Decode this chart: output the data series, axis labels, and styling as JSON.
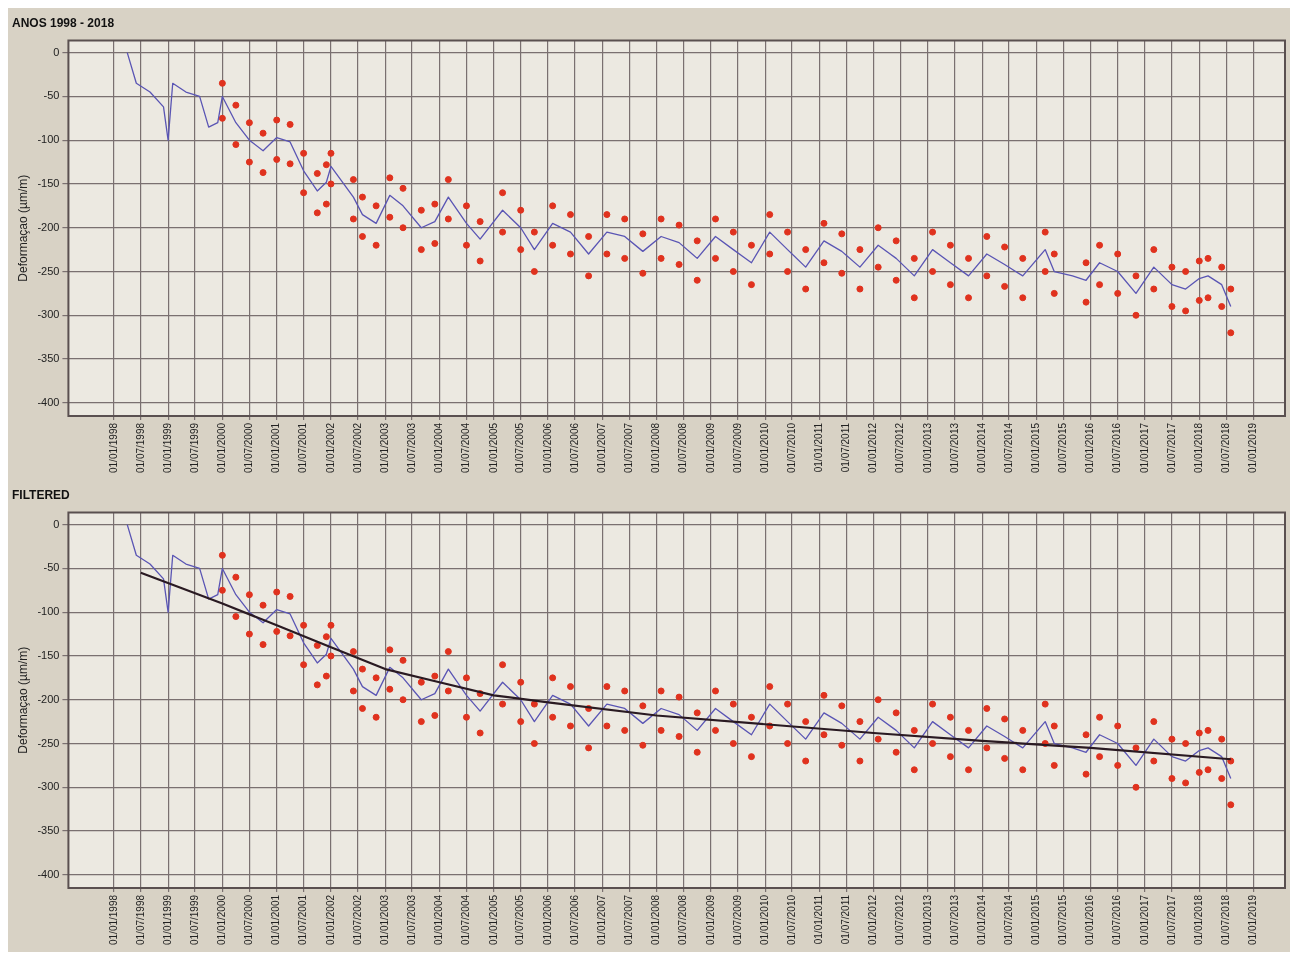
{
  "chart_data": [
    {
      "type": "line",
      "title": "ANOS 1998 - 2018",
      "ylabel": "Deformaçao (µm/m)",
      "xlim": [
        "1997-03-01",
        "2019-08-01"
      ],
      "ylim": [
        -415,
        14
      ],
      "grid": true,
      "yticks": [
        0,
        -50,
        -100,
        -150,
        -200,
        -250,
        -300,
        -350,
        -400
      ],
      "xticks": [
        {
          "value": "1998-01-01",
          "label": "01/01/1998"
        },
        {
          "value": "1998-07-01",
          "label": "01/07/1998"
        },
        {
          "value": "1999-01-01",
          "label": "01/01/1999"
        },
        {
          "value": "1999-07-01",
          "label": "01/07/1999"
        },
        {
          "value": "2000-01-01",
          "label": "01/01/2000"
        },
        {
          "value": "2000-07-01",
          "label": "01/07/2000"
        },
        {
          "value": "2001-01-01",
          "label": "01/01/2001"
        },
        {
          "value": "2001-07-01",
          "label": "01/07/2001"
        },
        {
          "value": "2002-01-01",
          "label": "01/01/2002"
        },
        {
          "value": "2002-07-01",
          "label": "01/07/2002"
        },
        {
          "value": "2003-01-01",
          "label": "01/01/2003"
        },
        {
          "value": "2003-07-01",
          "label": "01/07/2003"
        },
        {
          "value": "2004-01-01",
          "label": "01/01/2004"
        },
        {
          "value": "2004-07-01",
          "label": "01/07/2004"
        },
        {
          "value": "2005-01-01",
          "label": "01/01/2005"
        },
        {
          "value": "2005-07-01",
          "label": "01/07/2005"
        },
        {
          "value": "2006-01-01",
          "label": "01/01/2006"
        },
        {
          "value": "2006-07-01",
          "label": "01/07/2006"
        },
        {
          "value": "2007-01-01",
          "label": "01/01/2007"
        },
        {
          "value": "2007-07-01",
          "label": "01/07/2007"
        },
        {
          "value": "2008-01-01",
          "label": "01/01/2008"
        },
        {
          "value": "2008-07-01",
          "label": "01/07/2008"
        },
        {
          "value": "2009-01-01",
          "label": "01/01/2009"
        },
        {
          "value": "2009-07-01",
          "label": "01/07/2009"
        },
        {
          "value": "2010-01-01",
          "label": "01/01/2010"
        },
        {
          "value": "2010-07-01",
          "label": "01/07/2010"
        },
        {
          "value": "2011-01-01",
          "label": "01/01/2011"
        },
        {
          "value": "2011-07-01",
          "label": "01/07/2011"
        },
        {
          "value": "2012-01-01",
          "label": "01/01/2012"
        },
        {
          "value": "2012-07-01",
          "label": "01/07/2012"
        },
        {
          "value": "2013-01-01",
          "label": "01/01/2013"
        },
        {
          "value": "2013-07-01",
          "label": "01/07/2013"
        },
        {
          "value": "2014-01-01",
          "label": "01/01/2014"
        },
        {
          "value": "2014-07-01",
          "label": "01/07/2014"
        },
        {
          "value": "2015-01-01",
          "label": "01/01/2015"
        },
        {
          "value": "2015-07-01",
          "label": "01/07/2015"
        },
        {
          "value": "2016-01-01",
          "label": "01/01/2016"
        },
        {
          "value": "2016-07-01",
          "label": "01/07/2016"
        },
        {
          "value": "2017-01-01",
          "label": "01/01/2017"
        },
        {
          "value": "2017-07-01",
          "label": "01/07/2017"
        },
        {
          "value": "2018-01-01",
          "label": "01/01/2018"
        },
        {
          "value": "2018-07-01",
          "label": "01/07/2018"
        },
        {
          "value": "2019-01-01",
          "label": "01/01/2019"
        }
      ],
      "series": [
        {
          "type": "scatter",
          "marker": "circle",
          "color": "#e0321e",
          "x": [
            "2000-01",
            "2000-01",
            "2000-04",
            "2000-04",
            "2000-07",
            "2000-07",
            "2000-10",
            "2000-10",
            "2001-01",
            "2001-01",
            "2001-04",
            "2001-04",
            "2001-07",
            "2001-07",
            "2001-10",
            "2001-10",
            "2001-12",
            "2001-12",
            "2002-01",
            "2002-01",
            "2002-06",
            "2002-06",
            "2002-08",
            "2002-08",
            "2002-11",
            "2002-11",
            "2003-02",
            "2003-02",
            "2003-05",
            "2003-05",
            "2003-09",
            "2003-09",
            "2003-12",
            "2003-12",
            "2004-03",
            "2004-03",
            "2004-07",
            "2004-07",
            "2004-10",
            "2004-10",
            "2005-03",
            "2005-03",
            "2005-07",
            "2005-07",
            "2005-10",
            "2005-10",
            "2006-02",
            "2006-02",
            "2006-06",
            "2006-06",
            "2006-10",
            "2006-10",
            "2007-02",
            "2007-02",
            "2007-06",
            "2007-06",
            "2007-10",
            "2007-10",
            "2008-02",
            "2008-02",
            "2008-06",
            "2008-06",
            "2008-10",
            "2008-10",
            "2009-02",
            "2009-02",
            "2009-06",
            "2009-06",
            "2009-10",
            "2009-10",
            "2010-02",
            "2010-02",
            "2010-06",
            "2010-06",
            "2010-10",
            "2010-10",
            "2011-02",
            "2011-02",
            "2011-06",
            "2011-06",
            "2011-10",
            "2011-10",
            "2012-02",
            "2012-02",
            "2012-06",
            "2012-06",
            "2012-10",
            "2012-10",
            "2013-02",
            "2013-02",
            "2013-06",
            "2013-06",
            "2013-10",
            "2013-10",
            "2014-02",
            "2014-02",
            "2014-06",
            "2014-06",
            "2014-10",
            "2014-10",
            "2015-03",
            "2015-03",
            "2015-05",
            "2015-05",
            "2015-12",
            "2015-12",
            "2016-03",
            "2016-03",
            "2016-07",
            "2016-07",
            "2016-11",
            "2016-11",
            "2017-03",
            "2017-03",
            "2017-07",
            "2017-07",
            "2017-10",
            "2017-10",
            "2018-01",
            "2018-01",
            "2018-03",
            "2018-03",
            "2018-06",
            "2018-06",
            "2018-08",
            "2018-08"
          ],
          "values": [
            -35,
            -75,
            -60,
            -105,
            -80,
            -125,
            -92,
            -137,
            -77,
            -122,
            -82,
            -127,
            -115,
            -160,
            -138,
            -183,
            -128,
            -173,
            -115,
            -150,
            -145,
            -190,
            -165,
            -210,
            -175,
            -220,
            -143,
            -188,
            -155,
            -200,
            -180,
            -225,
            -173,
            -218,
            -145,
            -190,
            -175,
            -220,
            -193,
            -238,
            -160,
            -205,
            -180,
            -225,
            -205,
            -250,
            -175,
            -220,
            -185,
            -230,
            -210,
            -255,
            -185,
            -230,
            -190,
            -235,
            -207,
            -252,
            -190,
            -235,
            -197,
            -242,
            -215,
            -260,
            -190,
            -235,
            -205,
            -250,
            -220,
            -265,
            -185,
            -230,
            -205,
            -250,
            -225,
            -270,
            -195,
            -240,
            -207,
            -252,
            -225,
            -270,
            -200,
            -245,
            -215,
            -260,
            -235,
            -280,
            -205,
            -250,
            -220,
            -265,
            -235,
            -280,
            -210,
            -255,
            -222,
            -267,
            -235,
            -280,
            -205,
            -250,
            -230,
            -275,
            -240,
            -285,
            -220,
            -265,
            -230,
            -275,
            -255,
            -300,
            -225,
            -270,
            -245,
            -290,
            -250,
            -295,
            -238,
            -283,
            -235,
            -280,
            -245,
            -290,
            -270,
            -320
          ]
        },
        {
          "type": "line",
          "marker": "none",
          "color": "#5a55b4",
          "x": [
            "1998-04",
            "1998-06",
            "1998-09",
            "1998-12",
            "1999-01",
            "1999-02",
            "1999-05",
            "1999-08",
            "1999-10",
            "1999-12",
            "2000-01",
            "2000-04",
            "2000-07",
            "2000-10",
            "2001-01",
            "2001-04",
            "2001-07",
            "2001-10",
            "2001-12",
            "2002-01",
            "2002-06",
            "2002-08",
            "2002-11",
            "2003-02",
            "2003-05",
            "2003-09",
            "2003-12",
            "2004-03",
            "2004-07",
            "2004-10",
            "2005-03",
            "2005-07",
            "2005-10",
            "2006-02",
            "2006-06",
            "2006-10",
            "2007-02",
            "2007-06",
            "2007-10",
            "2008-02",
            "2008-06",
            "2008-10",
            "2009-02",
            "2009-06",
            "2009-10",
            "2010-02",
            "2010-06",
            "2010-10",
            "2011-02",
            "2011-06",
            "2011-10",
            "2012-02",
            "2012-06",
            "2012-10",
            "2013-02",
            "2013-06",
            "2013-10",
            "2014-02",
            "2014-06",
            "2014-10",
            "2015-03",
            "2015-05",
            "2015-09",
            "2015-12",
            "2016-03",
            "2016-07",
            "2016-11",
            "2017-03",
            "2017-07",
            "2017-10",
            "2018-01",
            "2018-03",
            "2018-06",
            "2018-08"
          ],
          "values": [
            0,
            -35,
            -45,
            -62,
            -100,
            -35,
            -45,
            -50,
            -85,
            -80,
            -50,
            -80,
            -100,
            -112,
            -97,
            -102,
            -135,
            -158,
            -148,
            -130,
            -165,
            -185,
            -195,
            -163,
            -175,
            -200,
            -193,
            -165,
            -195,
            -213,
            -180,
            -200,
            -225,
            -195,
            -205,
            -230,
            -205,
            -210,
            -227,
            -210,
            -217,
            -235,
            -210,
            -225,
            -240,
            -205,
            -225,
            -245,
            -215,
            -227,
            -245,
            -220,
            -235,
            -255,
            -225,
            -240,
            -255,
            -230,
            -242,
            -255,
            -225,
            -250,
            -255,
            -260,
            -240,
            -250,
            -275,
            -245,
            -265,
            -270,
            -258,
            -255,
            -265,
            -290
          ]
        }
      ]
    },
    {
      "type": "line",
      "title": "FILTERED",
      "ylabel": "Deformaçao (µm/m)",
      "xlim": [
        "1997-03-01",
        "2019-08-01"
      ],
      "ylim": [
        -415,
        14
      ],
      "grid": true,
      "yticks": [
        0,
        -50,
        -100,
        -150,
        -200,
        -250,
        -300,
        -350,
        -400
      ],
      "xticks": [
        {
          "value": "1998-01-01",
          "label": "01/01/1998"
        },
        {
          "value": "1998-07-01",
          "label": "01/07/1998"
        },
        {
          "value": "1999-01-01",
          "label": "01/01/1999"
        },
        {
          "value": "1999-07-01",
          "label": "01/07/1999"
        },
        {
          "value": "2000-01-01",
          "label": "01/01/2000"
        },
        {
          "value": "2000-07-01",
          "label": "01/07/2000"
        },
        {
          "value": "2001-01-01",
          "label": "01/01/2001"
        },
        {
          "value": "2001-07-01",
          "label": "01/07/2001"
        },
        {
          "value": "2002-01-01",
          "label": "01/01/2002"
        },
        {
          "value": "2002-07-01",
          "label": "01/07/2002"
        },
        {
          "value": "2003-01-01",
          "label": "01/01/2003"
        },
        {
          "value": "2003-07-01",
          "label": "01/07/2003"
        },
        {
          "value": "2004-01-01",
          "label": "01/01/2004"
        },
        {
          "value": "2004-07-01",
          "label": "01/07/2004"
        },
        {
          "value": "2005-01-01",
          "label": "01/01/2005"
        },
        {
          "value": "2005-07-01",
          "label": "01/07/2005"
        },
        {
          "value": "2006-01-01",
          "label": "01/01/2006"
        },
        {
          "value": "2006-07-01",
          "label": "01/07/2006"
        },
        {
          "value": "2007-01-01",
          "label": "01/01/2007"
        },
        {
          "value": "2007-07-01",
          "label": "01/07/2007"
        },
        {
          "value": "2008-01-01",
          "label": "01/01/2008"
        },
        {
          "value": "2008-07-01",
          "label": "01/07/2008"
        },
        {
          "value": "2009-01-01",
          "label": "01/01/2009"
        },
        {
          "value": "2009-07-01",
          "label": "01/07/2009"
        },
        {
          "value": "2010-01-01",
          "label": "01/01/2010"
        },
        {
          "value": "2010-07-01",
          "label": "01/07/2010"
        },
        {
          "value": "2011-01-01",
          "label": "01/01/2011"
        },
        {
          "value": "2011-07-01",
          "label": "01/07/2011"
        },
        {
          "value": "2012-01-01",
          "label": "01/01/2012"
        },
        {
          "value": "2012-07-01",
          "label": "01/07/2012"
        },
        {
          "value": "2013-01-01",
          "label": "01/01/2013"
        },
        {
          "value": "2013-07-01",
          "label": "01/07/2013"
        },
        {
          "value": "2014-01-01",
          "label": "01/01/2014"
        },
        {
          "value": "2014-07-01",
          "label": "01/07/2014"
        },
        {
          "value": "2015-01-01",
          "label": "01/01/2015"
        },
        {
          "value": "2015-07-01",
          "label": "01/07/2015"
        },
        {
          "value": "2016-01-01",
          "label": "01/01/2016"
        },
        {
          "value": "2016-07-01",
          "label": "01/07/2016"
        },
        {
          "value": "2017-01-01",
          "label": "01/01/2017"
        },
        {
          "value": "2017-07-01",
          "label": "01/07/2017"
        },
        {
          "value": "2018-01-01",
          "label": "01/01/2018"
        },
        {
          "value": "2018-07-01",
          "label": "01/07/2018"
        },
        {
          "value": "2019-01-01",
          "label": "01/01/2019"
        }
      ],
      "series": [
        {
          "type": "scatter",
          "marker": "circle",
          "color": "#e0321e",
          "x": [
            "2000-01",
            "2000-01",
            "2000-04",
            "2000-04",
            "2000-07",
            "2000-07",
            "2000-10",
            "2000-10",
            "2001-01",
            "2001-01",
            "2001-04",
            "2001-04",
            "2001-07",
            "2001-07",
            "2001-10",
            "2001-10",
            "2001-12",
            "2001-12",
            "2002-01",
            "2002-01",
            "2002-06",
            "2002-06",
            "2002-08",
            "2002-08",
            "2002-11",
            "2002-11",
            "2003-02",
            "2003-02",
            "2003-05",
            "2003-05",
            "2003-09",
            "2003-09",
            "2003-12",
            "2003-12",
            "2004-03",
            "2004-03",
            "2004-07",
            "2004-07",
            "2004-10",
            "2004-10",
            "2005-03",
            "2005-03",
            "2005-07",
            "2005-07",
            "2005-10",
            "2005-10",
            "2006-02",
            "2006-02",
            "2006-06",
            "2006-06",
            "2006-10",
            "2006-10",
            "2007-02",
            "2007-02",
            "2007-06",
            "2007-06",
            "2007-10",
            "2007-10",
            "2008-02",
            "2008-02",
            "2008-06",
            "2008-06",
            "2008-10",
            "2008-10",
            "2009-02",
            "2009-02",
            "2009-06",
            "2009-06",
            "2009-10",
            "2009-10",
            "2010-02",
            "2010-02",
            "2010-06",
            "2010-06",
            "2010-10",
            "2010-10",
            "2011-02",
            "2011-02",
            "2011-06",
            "2011-06",
            "2011-10",
            "2011-10",
            "2012-02",
            "2012-02",
            "2012-06",
            "2012-06",
            "2012-10",
            "2012-10",
            "2013-02",
            "2013-02",
            "2013-06",
            "2013-06",
            "2013-10",
            "2013-10",
            "2014-02",
            "2014-02",
            "2014-06",
            "2014-06",
            "2014-10",
            "2014-10",
            "2015-03",
            "2015-03",
            "2015-05",
            "2015-05",
            "2015-12",
            "2015-12",
            "2016-03",
            "2016-03",
            "2016-07",
            "2016-07",
            "2016-11",
            "2016-11",
            "2017-03",
            "2017-03",
            "2017-07",
            "2017-07",
            "2017-10",
            "2017-10",
            "2018-01",
            "2018-01",
            "2018-03",
            "2018-03",
            "2018-06",
            "2018-06",
            "2018-08",
            "2018-08"
          ],
          "values": [
            -35,
            -75,
            -60,
            -105,
            -80,
            -125,
            -92,
            -137,
            -77,
            -122,
            -82,
            -127,
            -115,
            -160,
            -138,
            -183,
            -128,
            -173,
            -115,
            -150,
            -145,
            -190,
            -165,
            -210,
            -175,
            -220,
            -143,
            -188,
            -155,
            -200,
            -180,
            -225,
            -173,
            -218,
            -145,
            -190,
            -175,
            -220,
            -193,
            -238,
            -160,
            -205,
            -180,
            -225,
            -205,
            -250,
            -175,
            -220,
            -185,
            -230,
            -210,
            -255,
            -185,
            -230,
            -190,
            -235,
            -207,
            -252,
            -190,
            -235,
            -197,
            -242,
            -215,
            -260,
            -190,
            -235,
            -205,
            -250,
            -220,
            -265,
            -185,
            -230,
            -205,
            -250,
            -225,
            -270,
            -195,
            -240,
            -207,
            -252,
            -225,
            -270,
            -200,
            -245,
            -215,
            -260,
            -235,
            -280,
            -205,
            -250,
            -220,
            -265,
            -235,
            -280,
            -210,
            -255,
            -222,
            -267,
            -235,
            -280,
            -205,
            -250,
            -230,
            -275,
            -240,
            -285,
            -220,
            -265,
            -230,
            -275,
            -255,
            -300,
            -225,
            -270,
            -245,
            -290,
            -250,
            -295,
            -238,
            -283,
            -235,
            -280,
            -245,
            -290,
            -270,
            -320
          ]
        },
        {
          "type": "line",
          "marker": "none",
          "color": "#5a55b4",
          "x": [
            "1998-04",
            "1998-06",
            "1998-09",
            "1998-12",
            "1999-01",
            "1999-02",
            "1999-05",
            "1999-08",
            "1999-10",
            "1999-12",
            "2000-01",
            "2000-04",
            "2000-07",
            "2000-10",
            "2001-01",
            "2001-04",
            "2001-07",
            "2001-10",
            "2001-12",
            "2002-01",
            "2002-06",
            "2002-08",
            "2002-11",
            "2003-02",
            "2003-05",
            "2003-09",
            "2003-12",
            "2004-03",
            "2004-07",
            "2004-10",
            "2005-03",
            "2005-07",
            "2005-10",
            "2006-02",
            "2006-06",
            "2006-10",
            "2007-02",
            "2007-06",
            "2007-10",
            "2008-02",
            "2008-06",
            "2008-10",
            "2009-02",
            "2009-06",
            "2009-10",
            "2010-02",
            "2010-06",
            "2010-10",
            "2011-02",
            "2011-06",
            "2011-10",
            "2012-02",
            "2012-06",
            "2012-10",
            "2013-02",
            "2013-06",
            "2013-10",
            "2014-02",
            "2014-06",
            "2014-10",
            "2015-03",
            "2015-05",
            "2015-09",
            "2015-12",
            "2016-03",
            "2016-07",
            "2016-11",
            "2017-03",
            "2017-07",
            "2017-10",
            "2018-01",
            "2018-03",
            "2018-06",
            "2018-08"
          ],
          "values": [
            0,
            -35,
            -45,
            -62,
            -100,
            -35,
            -45,
            -50,
            -85,
            -80,
            -50,
            -80,
            -100,
            -112,
            -97,
            -102,
            -135,
            -158,
            -148,
            -130,
            -165,
            -185,
            -195,
            -163,
            -175,
            -200,
            -193,
            -165,
            -195,
            -213,
            -180,
            -200,
            -225,
            -195,
            -205,
            -230,
            -205,
            -210,
            -227,
            -210,
            -217,
            -235,
            -210,
            -225,
            -240,
            -205,
            -225,
            -245,
            -215,
            -227,
            -245,
            -220,
            -235,
            -255,
            -225,
            -240,
            -255,
            -230,
            -242,
            -255,
            -225,
            -250,
            -255,
            -260,
            -240,
            -250,
            -275,
            -245,
            -265,
            -270,
            -258,
            -255,
            -265,
            -290
          ]
        },
        {
          "type": "line",
          "marker": "none",
          "color": "#2a1a22",
          "x": [
            "1998-07",
            "2000-01",
            "2001-01",
            "2002-01",
            "2003-01",
            "2004-01",
            "2005-01",
            "2006-01",
            "2008-01",
            "2010-01",
            "2012-01",
            "2014-01",
            "2016-01",
            "2018-08"
          ],
          "values": [
            -55,
            -90,
            -115,
            -140,
            -165,
            -180,
            -195,
            -203,
            -218,
            -228,
            -238,
            -247,
            -255,
            -268
          ]
        }
      ]
    }
  ]
}
